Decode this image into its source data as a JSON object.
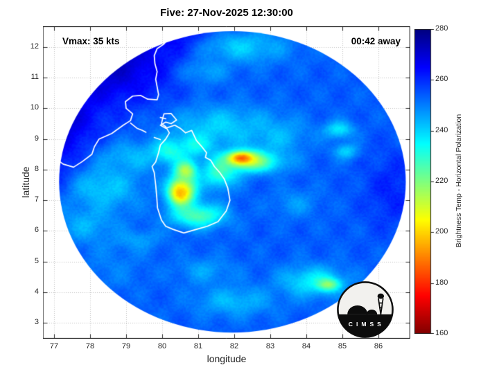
{
  "chart_data": {
    "type": "heatmap",
    "title": "Five: 27-Nov-2025 12:30:00",
    "xlabel": "longitude",
    "ylabel": "latitude",
    "xlim": [
      76.692,
      86.885
    ],
    "ylim": [
      2.48,
      12.678
    ],
    "xticks": [
      77,
      78,
      79,
      80,
      81,
      82,
      83,
      84,
      85,
      86
    ],
    "yticks": [
      3,
      4,
      5,
      6,
      7,
      8,
      9,
      10,
      11,
      12
    ],
    "grid": "dotted",
    "annotations": {
      "vmax_label": "Vmax: 35 kts",
      "eta_label": "00:42 away"
    },
    "colorbar": {
      "label": "Brightness Temp - Horizontal Polarization",
      "min": 160,
      "max": 280,
      "ticks": [
        160,
        180,
        200,
        220,
        240,
        260,
        280
      ],
      "colormap": "reversed-jet"
    },
    "swath": {
      "center_lon": 81.95,
      "center_lat": 7.6,
      "radius_lon_deg": 4.81,
      "radius_lat_deg": 4.92,
      "background_K": 254
    },
    "features": [
      {
        "name": "india-landmass-cold",
        "lon": 78.3,
        "lat": 11.6,
        "slon": 2.0,
        "slat": 1.5,
        "K": 273
      },
      {
        "name": "india-coast-cold",
        "lon": 77.0,
        "lat": 9.6,
        "slon": 1.1,
        "slat": 1.4,
        "K": 272
      },
      {
        "name": "left-edge-cold",
        "lon": 76.9,
        "lat": 8.2,
        "slon": 0.7,
        "slat": 0.9,
        "K": 266
      },
      {
        "name": "top-dark-band",
        "lon": 80.3,
        "lat": 12.4,
        "slon": 1.4,
        "slat": 0.8,
        "K": 268
      },
      {
        "name": "right-edge-blue",
        "lon": 86.4,
        "lat": 7.3,
        "slon": 0.8,
        "slat": 1.3,
        "K": 261
      },
      {
        "name": "sw-lighter-blue",
        "lon": 78.6,
        "lat": 4.8,
        "slon": 1.0,
        "slat": 0.8,
        "K": 250
      },
      {
        "name": "top-cyan-streak",
        "lon": 82.2,
        "lat": 12.0,
        "slon": 1.3,
        "slat": 0.55,
        "K": 241
      },
      {
        "name": "top-cyan-streak-2",
        "lon": 81.2,
        "lat": 11.2,
        "slon": 0.7,
        "slat": 0.45,
        "K": 246
      },
      {
        "name": "west-cyan-1",
        "lon": 78.4,
        "lat": 7.4,
        "slon": 1.0,
        "slat": 0.8,
        "K": 241
      },
      {
        "name": "west-cyan-2",
        "lon": 77.9,
        "lat": 6.2,
        "slon": 0.8,
        "slat": 0.6,
        "K": 244
      },
      {
        "name": "west-cyan-3",
        "lon": 79.1,
        "lat": 8.4,
        "slon": 0.8,
        "slat": 0.5,
        "K": 243
      },
      {
        "name": "sw-cyan-wisp",
        "lon": 79.3,
        "lat": 5.7,
        "slon": 0.7,
        "slat": 0.35,
        "K": 246
      },
      {
        "name": "center-cyan-band",
        "lon": 81.6,
        "lat": 9.4,
        "slon": 1.4,
        "slat": 0.7,
        "K": 240
      },
      {
        "name": "center-cyan-band-2",
        "lon": 83.1,
        "lat": 9.1,
        "slon": 0.9,
        "slat": 0.6,
        "K": 243
      },
      {
        "name": "ne-cyan-blob",
        "lon": 84.9,
        "lat": 9.3,
        "slon": 0.4,
        "slat": 0.28,
        "K": 237
      },
      {
        "name": "e-cyan-blob",
        "lon": 85.1,
        "lat": 8.6,
        "slon": 0.33,
        "slat": 0.26,
        "K": 240
      },
      {
        "name": "e-mottling",
        "lon": 83.7,
        "lat": 6.9,
        "slon": 0.6,
        "slat": 0.45,
        "K": 247
      },
      {
        "name": "se-cyan-field",
        "lon": 84.2,
        "lat": 4.35,
        "slon": 0.9,
        "slat": 0.5,
        "K": 236
      },
      {
        "name": "s-cyan-streaks",
        "lon": 82.0,
        "lat": 3.7,
        "slon": 1.1,
        "slat": 0.5,
        "K": 243
      },
      {
        "name": "s-cyan-streaks-2",
        "lon": 81.2,
        "lat": 4.7,
        "slon": 0.8,
        "slat": 0.45,
        "K": 246
      },
      {
        "name": "srilanka-green-arc-south",
        "lon": 81.0,
        "lat": 6.5,
        "slon": 0.75,
        "slat": 0.4,
        "K": 226
      },
      {
        "name": "srilanka-green-arc-east",
        "lon": 81.6,
        "lat": 7.9,
        "slon": 0.5,
        "slat": 0.5,
        "K": 228
      },
      {
        "name": "srilanka-green-northwest",
        "lon": 80.2,
        "lat": 8.6,
        "slon": 0.5,
        "slat": 0.4,
        "K": 231
      },
      {
        "name": "srilanka-green-north",
        "lon": 80.9,
        "lat": 8.8,
        "slon": 0.5,
        "slat": 0.35,
        "K": 233
      },
      {
        "name": "storm-warm-band",
        "lon": 82.5,
        "lat": 8.25,
        "slon": 0.85,
        "slat": 0.35,
        "K": 224
      },
      {
        "name": "se-warm-spot",
        "lon": 84.6,
        "lat": 4.25,
        "slon": 0.3,
        "slat": 0.2,
        "K": 217
      },
      {
        "name": "srilanka-yellow-core",
        "lon": 80.55,
        "lat": 7.3,
        "slon": 0.4,
        "slat": 0.5,
        "K": 205
      },
      {
        "name": "srilanka-yellow-north",
        "lon": 80.65,
        "lat": 7.95,
        "slon": 0.3,
        "slat": 0.35,
        "K": 213
      },
      {
        "name": "srilanka-orange-spot",
        "lon": 80.5,
        "lat": 7.25,
        "slon": 0.22,
        "slat": 0.28,
        "K": 196
      },
      {
        "name": "storm-orange-core",
        "lon": 82.25,
        "lat": 8.35,
        "slon": 0.45,
        "slat": 0.25,
        "K": 203
      },
      {
        "name": "storm-red-core",
        "lon": 82.2,
        "lat": 8.37,
        "slon": 0.25,
        "slat": 0.15,
        "K": 184
      }
    ],
    "coastlines": {
      "india": [
        [
          80.33,
          12.68
        ],
        [
          80.22,
          12.35
        ],
        [
          80.05,
          12.1
        ],
        [
          79.86,
          11.95
        ],
        [
          79.78,
          11.72
        ],
        [
          79.8,
          11.45
        ],
        [
          79.86,
          11.2
        ],
        [
          79.82,
          10.95
        ],
        [
          79.86,
          10.7
        ],
        [
          79.9,
          10.45
        ],
        [
          79.86,
          10.28
        ],
        [
          79.6,
          10.3
        ],
        [
          79.4,
          10.42
        ],
        [
          79.18,
          10.4
        ],
        [
          78.98,
          10.22
        ],
        [
          79.0,
          10.0
        ],
        [
          79.18,
          9.82
        ],
        [
          79.12,
          9.6
        ],
        [
          78.92,
          9.45
        ],
        [
          78.6,
          9.18
        ],
        [
          78.25,
          9.0
        ],
        [
          78.12,
          8.75
        ],
        [
          78.05,
          8.5
        ],
        [
          77.78,
          8.26
        ],
        [
          77.54,
          8.08
        ],
        [
          77.25,
          8.18
        ],
        [
          76.98,
          8.42
        ],
        [
          76.78,
          8.68
        ],
        [
          76.69,
          8.9
        ]
      ],
      "rameswaram_chain": [
        [
          79.12,
          9.52
        ],
        [
          79.3,
          9.35
        ],
        [
          79.45,
          9.28
        ],
        [
          79.55,
          9.22
        ]
      ],
      "mannar_island": [
        [
          79.78,
          9.05
        ],
        [
          79.95,
          8.98
        ]
      ],
      "jaffna_islets": [
        [
          79.95,
          9.7
        ],
        [
          80.1,
          9.66
        ]
      ],
      "sri_lanka": [
        [
          80.05,
          9.82
        ],
        [
          80.25,
          9.83
        ],
        [
          80.4,
          9.62
        ],
        [
          80.25,
          9.5
        ],
        [
          80.1,
          9.55
        ],
        [
          79.95,
          9.45
        ],
        [
          80.1,
          9.35
        ],
        [
          80.35,
          9.45
        ],
        [
          80.5,
          9.35
        ],
        [
          80.65,
          9.2
        ],
        [
          80.82,
          9.28
        ],
        [
          80.95,
          8.95
        ],
        [
          81.1,
          8.75
        ],
        [
          81.23,
          8.55
        ],
        [
          81.2,
          8.4
        ],
        [
          81.35,
          8.3
        ],
        [
          81.45,
          8.1
        ],
        [
          81.6,
          7.9
        ],
        [
          81.72,
          7.7
        ],
        [
          81.82,
          7.4
        ],
        [
          81.88,
          7.0
        ],
        [
          81.78,
          6.65
        ],
        [
          81.55,
          6.3
        ],
        [
          81.25,
          6.15
        ],
        [
          80.95,
          6.05
        ],
        [
          80.6,
          5.93
        ],
        [
          80.3,
          6.05
        ],
        [
          80.1,
          6.15
        ],
        [
          79.98,
          6.35
        ],
        [
          79.87,
          6.75
        ],
        [
          79.85,
          7.1
        ],
        [
          79.82,
          7.5
        ],
        [
          79.78,
          7.9
        ],
        [
          79.72,
          8.1
        ],
        [
          79.82,
          8.25
        ],
        [
          79.9,
          8.55
        ],
        [
          79.95,
          8.8
        ],
        [
          80.1,
          9.0
        ],
        [
          80.2,
          9.2
        ],
        [
          80.1,
          9.4
        ],
        [
          79.98,
          9.5
        ],
        [
          80.02,
          9.7
        ],
        [
          80.05,
          9.82
        ]
      ]
    }
  },
  "logo": {
    "text": "C I M S S"
  }
}
